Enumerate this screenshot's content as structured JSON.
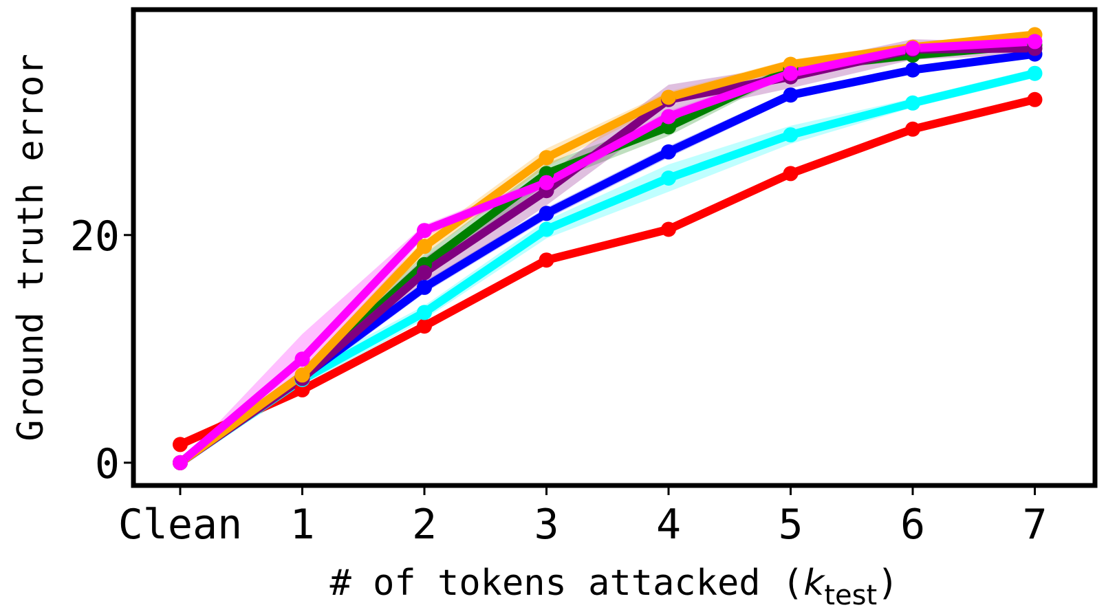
{
  "chart_data": {
    "type": "line",
    "title": "",
    "xlabel": {
      "prefix": "# of tokens attacked (",
      "var": "k",
      "sub": "test",
      "suffix": ")"
    },
    "ylabel": "Ground truth error",
    "categories": [
      "Clean",
      "1",
      "2",
      "3",
      "4",
      "5",
      "6",
      "7"
    ],
    "yticks": [
      0,
      20
    ],
    "ylim": [
      -2,
      39.8
    ],
    "grid": false,
    "legend": "none",
    "series": [
      {
        "color": "#ff0000",
        "values": [
          1.6,
          6.4,
          12.0,
          17.8,
          20.5,
          25.4,
          29.3,
          31.9
        ],
        "band": [
          0.0,
          0.3,
          0.3,
          0.3,
          0.3,
          0.3,
          0.3,
          0.3
        ]
      },
      {
        "color": "#00ffff",
        "values": [
          0.0,
          7.3,
          13.2,
          20.5,
          25.0,
          28.8,
          31.6,
          34.2
        ],
        "band": [
          0.0,
          0.8,
          0.6,
          0.8,
          1.2,
          0.8,
          0.4,
          0.4
        ]
      },
      {
        "color": "#0000ff",
        "values": [
          0.0,
          7.5,
          15.4,
          21.9,
          27.3,
          32.3,
          34.5,
          35.9
        ],
        "band": [
          0.0,
          0.5,
          0.5,
          0.5,
          0.5,
          0.4,
          0.3,
          0.3
        ]
      },
      {
        "color": "#008000",
        "values": [
          0.0,
          7.6,
          17.4,
          25.4,
          29.5,
          34.6,
          35.8,
          36.7
        ],
        "band": [
          0.0,
          0.6,
          0.9,
          0.9,
          0.8,
          0.4,
          0.4,
          0.3
        ]
      },
      {
        "color": "#800080",
        "values": [
          0.0,
          7.4,
          16.7,
          23.9,
          31.9,
          33.9,
          36.3,
          36.4
        ],
        "band": [
          0.0,
          0.6,
          1.3,
          1.3,
          1.3,
          1.0,
          0.9,
          0.5
        ]
      },
      {
        "color": "#ffa500",
        "values": [
          0.0,
          7.7,
          19.0,
          26.8,
          32.1,
          35.0,
          36.5,
          37.6
        ],
        "band": [
          0.0,
          0.5,
          0.7,
          0.8,
          0.5,
          0.4,
          0.4,
          0.3
        ]
      },
      {
        "color": "#ff00ff",
        "values": [
          0.0,
          9.1,
          20.4,
          24.6,
          30.4,
          34.2,
          36.4,
          37.0
        ],
        "band": [
          0.0,
          2.2,
          0.5,
          0.5,
          0.5,
          0.4,
          0.3,
          0.3
        ]
      }
    ]
  }
}
